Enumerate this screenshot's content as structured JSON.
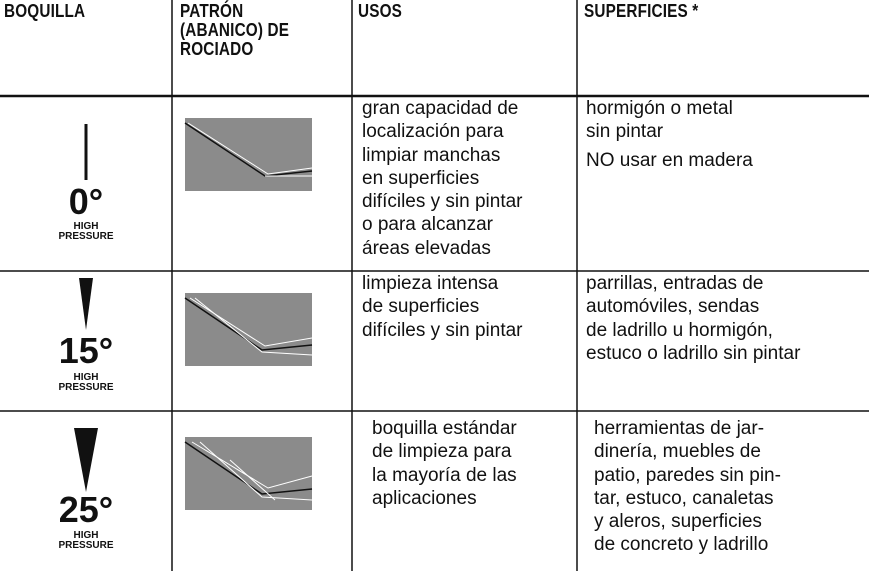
{
  "table": {
    "header": [
      [
        "BOQUILLA"
      ],
      [
        "PATRÓN",
        "(ABANICO) DE",
        "ROCIADO"
      ],
      [
        "USOS"
      ],
      [
        "SUPERFICIES *"
      ]
    ],
    "rows": [
      {
        "angle": "0°",
        "pressure": [
          "HIGH",
          "PRESSURE"
        ],
        "uses": [
          "gran capacidad de",
          "localización para",
          "limpiar manchas",
          "en superficies",
          "difíciles y sin pintar",
          "o para alcanzar",
          "áreas elevadas"
        ],
        "surfaces": [
          [
            "hormigón o metal",
            "sin pintar"
          ],
          [
            "NO usar en madera"
          ]
        ]
      },
      {
        "angle": "15°",
        "pressure": [
          "HIGH",
          "PRESSURE"
        ],
        "uses": [
          "limpieza intensa",
          "de superficies",
          "difíciles y sin pintar"
        ],
        "surfaces": [
          [
            "parrillas, entradas de",
            "automóviles, sendas",
            "de ladrillo u hormigón,",
            "estuco o ladrillo sin pintar"
          ]
        ]
      },
      {
        "angle": "25°",
        "pressure": [
          "HIGH",
          "PRESSURE"
        ],
        "uses": [
          "boquilla estándar",
          "de limpieza para",
          "la mayoría de las",
          "aplicaciones"
        ],
        "surfaces": [
          [
            "herramientas de jar-",
            "dinería, muebles de",
            "patio, paredes sin pin-",
            "tar, estuco, canaletas",
            "y aleros, superficies",
            "de concreto y ladrillo"
          ]
        ]
      }
    ]
  }
}
